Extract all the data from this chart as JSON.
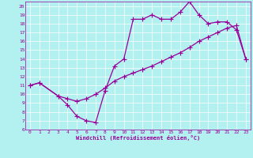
{
  "xlabel": "Windchill (Refroidissement éolien,°C)",
  "xlim": [
    -0.5,
    23.5
  ],
  "ylim": [
    6,
    20.5
  ],
  "xticks": [
    0,
    1,
    2,
    3,
    4,
    5,
    6,
    7,
    8,
    9,
    10,
    11,
    12,
    13,
    14,
    15,
    16,
    17,
    18,
    19,
    20,
    21,
    22,
    23
  ],
  "yticks": [
    6,
    7,
    8,
    9,
    10,
    11,
    12,
    13,
    14,
    15,
    16,
    17,
    18,
    19,
    20
  ],
  "bg_color": "#b3f0f0",
  "line_color": "#990099",
  "grid_color": "#ffffff",
  "line1_x": [
    0,
    1,
    3,
    4,
    5,
    6,
    7,
    8,
    9,
    10,
    11,
    12,
    13,
    14,
    15,
    16,
    17,
    18,
    19,
    20,
    21,
    22,
    23
  ],
  "line1_y": [
    11.0,
    11.3,
    9.8,
    8.8,
    7.5,
    7.0,
    6.8,
    10.4,
    13.2,
    14.0,
    18.5,
    18.5,
    19.0,
    18.5,
    18.5,
    19.3,
    20.5,
    19.0,
    18.0,
    18.2,
    18.2,
    17.3,
    14.0
  ],
  "line2_x": [
    0,
    1,
    3,
    4,
    5,
    6,
    7,
    8,
    9,
    10,
    11,
    12,
    13,
    14,
    15,
    16,
    17,
    18,
    19,
    20,
    21,
    22,
    23
  ],
  "line2_y": [
    11.0,
    11.3,
    9.8,
    9.5,
    9.2,
    9.5,
    10.0,
    10.7,
    11.5,
    12.0,
    12.4,
    12.8,
    13.2,
    13.7,
    14.2,
    14.7,
    15.3,
    16.0,
    16.5,
    17.0,
    17.5,
    17.8,
    14.0
  ],
  "font_color": "#990099",
  "font_family": "monospace",
  "marker": "+",
  "markersize": 4,
  "linewidth": 0.9
}
